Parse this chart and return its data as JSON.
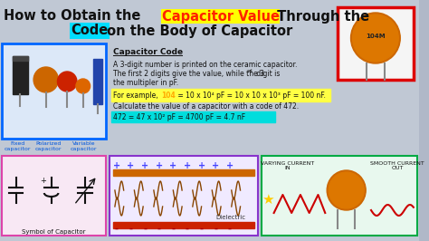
{
  "bg_color": "#b0b8c8",
  "title_part1": "How to Obtain the ",
  "title_highlight1": "Capacitor Value",
  "title_part2": " Through the",
  "title_line2_part1": "Code",
  "title_line2_part2": " on the Body of Capacitor",
  "cap_code_title": "Capacitor Code",
  "cap_code_line1": "A 3-digit number is printed on the ceramic capacitor.",
  "cap_code_line2a": "The first 2 digits give the value, while the 3",
  "cap_code_line2c": " digit is",
  "cap_code_line3": "the multipler in pF.",
  "example_text": "For example, ",
  "example_colored": "104",
  "example_rest": " = 10 x 10⁴ pF = 10 x 10 x 10³ pF = 100 nF.",
  "calc_text": "Calculate the value of a capacitor with a code of 472.",
  "calc_colored": "472 = 47 x 10² pF = 4700 pF = 4.7 nF",
  "bottom_symbol_title": "Symbol of Capacitor",
  "dielectric_label": "Dielectric",
  "varying_label": "VARYING CURRENT\nIN",
  "smooth_label": "SMOOTH CURRENT\nOUT"
}
